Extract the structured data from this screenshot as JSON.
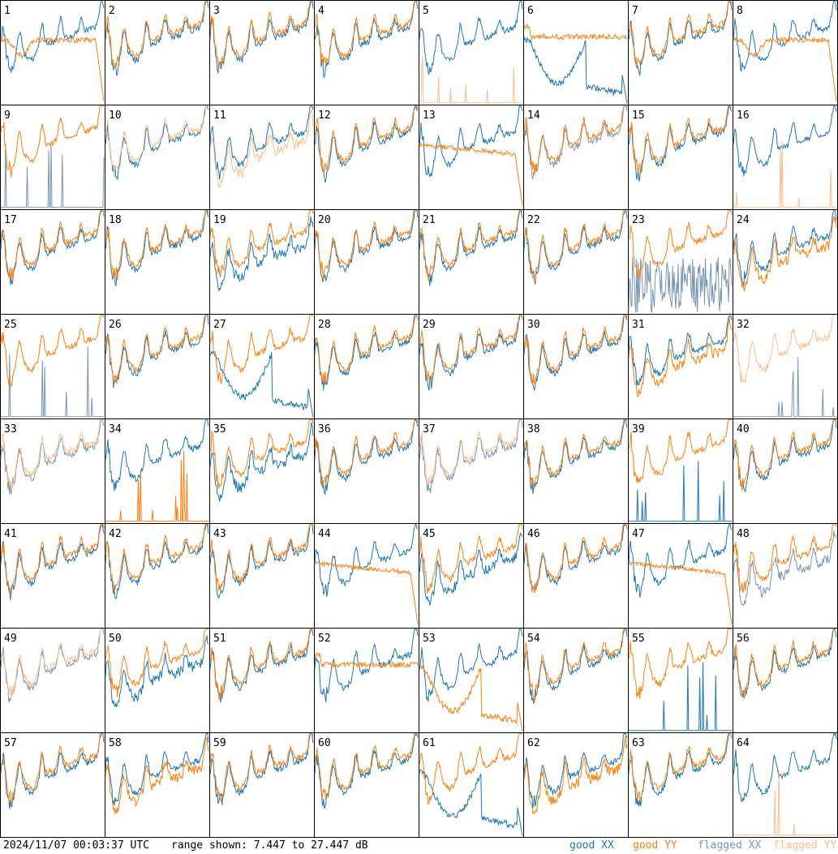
{
  "footer": {
    "timestamp": "2024/11/07 00:03:37 UTC",
    "range_text": "range shown: 7.447 to 27.447 dB",
    "legend": {
      "good_xx": "good XX",
      "good_yy": "good YY",
      "flagged_xx": "flagged XX",
      "flagged_yy": "flagged YY"
    }
  },
  "colors": {
    "good_xx": "#1f77b4",
    "good_yy": "#ff7f0e",
    "flagged_xx": "#7896b4",
    "flagged_yy": "#ffbe8c"
  },
  "chart_data": {
    "type": "line",
    "grid": "8x8 small multiples",
    "ylim": [
      7.447,
      27.447
    ],
    "y_unit": "dB",
    "panels": [
      {
        "label": "1",
        "xx": "good",
        "yy": "good",
        "xx_shape": "normal",
        "yy_shape": "dropoff"
      },
      {
        "label": "2",
        "xx": "good",
        "yy": "good",
        "xx_shape": "normal",
        "yy_shape": "normal"
      },
      {
        "label": "3",
        "xx": "good",
        "yy": "good",
        "xx_shape": "normal",
        "yy_shape": "normal"
      },
      {
        "label": "4",
        "xx": "good",
        "yy": "good",
        "xx_shape": "normal",
        "yy_shape": "normal"
      },
      {
        "label": "5",
        "xx": "good",
        "yy": "flagged",
        "xx_shape": "normal",
        "yy_shape": "spiky_low"
      },
      {
        "label": "6",
        "xx": "good",
        "yy": "good",
        "xx_shape": "dip",
        "yy_shape": "flat"
      },
      {
        "label": "7",
        "xx": "good",
        "yy": "good",
        "xx_shape": "normal",
        "yy_shape": "normal"
      },
      {
        "label": "8",
        "xx": "good",
        "yy": "good",
        "xx_shape": "normal",
        "yy_shape": "dropoff"
      },
      {
        "label": "9",
        "xx": "flagged",
        "yy": "good",
        "xx_shape": "spiky_low",
        "yy_shape": "normal"
      },
      {
        "label": "10",
        "xx": "good",
        "yy": "flagged",
        "xx_shape": "normal",
        "yy_shape": "normal"
      },
      {
        "label": "11",
        "xx": "good",
        "yy": "flagged",
        "xx_shape": "normal",
        "yy_shape": "low"
      },
      {
        "label": "12",
        "xx": "good",
        "yy": "good",
        "xx_shape": "normal",
        "yy_shape": "normal"
      },
      {
        "label": "13",
        "xx": "good",
        "yy": "good",
        "xx_shape": "normal",
        "yy_shape": "flat_drop"
      },
      {
        "label": "14",
        "xx": "flagged",
        "yy": "good",
        "xx_shape": "normal",
        "yy_shape": "normal"
      },
      {
        "label": "15",
        "xx": "good",
        "yy": "good",
        "xx_shape": "normal",
        "yy_shape": "normal"
      },
      {
        "label": "16",
        "xx": "good",
        "yy": "flagged",
        "xx_shape": "normal",
        "yy_shape": "spiky_low"
      },
      {
        "label": "17",
        "xx": "good",
        "yy": "good",
        "xx_shape": "normal",
        "yy_shape": "normal"
      },
      {
        "label": "18",
        "xx": "good",
        "yy": "good",
        "xx_shape": "normal",
        "yy_shape": "normal"
      },
      {
        "label": "19",
        "xx": "good",
        "yy": "good",
        "xx_shape": "low",
        "yy_shape": "normal"
      },
      {
        "label": "20",
        "xx": "good",
        "yy": "good",
        "xx_shape": "normal",
        "yy_shape": "normal"
      },
      {
        "label": "21",
        "xx": "good",
        "yy": "good",
        "xx_shape": "normal",
        "yy_shape": "normal"
      },
      {
        "label": "22",
        "xx": "good",
        "yy": "good",
        "xx_shape": "normal",
        "yy_shape": "normal"
      },
      {
        "label": "23",
        "xx": "flagged",
        "yy": "good",
        "xx_shape": "noisy",
        "yy_shape": "normal"
      },
      {
        "label": "24",
        "xx": "good",
        "yy": "good",
        "xx_shape": "normal",
        "yy_shape": "low"
      },
      {
        "label": "25",
        "xx": "flagged",
        "yy": "good",
        "xx_shape": "spiky_low",
        "yy_shape": "normal"
      },
      {
        "label": "26",
        "xx": "good",
        "yy": "good",
        "xx_shape": "normal",
        "yy_shape": "normal"
      },
      {
        "label": "27",
        "xx": "good",
        "yy": "good",
        "xx_shape": "dip",
        "yy_shape": "normal"
      },
      {
        "label": "28",
        "xx": "good",
        "yy": "good",
        "xx_shape": "normal",
        "yy_shape": "normal"
      },
      {
        "label": "29",
        "xx": "good",
        "yy": "good",
        "xx_shape": "normal",
        "yy_shape": "normal"
      },
      {
        "label": "30",
        "xx": "good",
        "yy": "good",
        "xx_shape": "normal",
        "yy_shape": "normal"
      },
      {
        "label": "31",
        "xx": "good",
        "yy": "good",
        "xx_shape": "normal",
        "yy_shape": "low"
      },
      {
        "label": "32",
        "xx": "flagged",
        "yy": "flagged",
        "xx_shape": "spiky_low",
        "yy_shape": "normal"
      },
      {
        "label": "33",
        "xx": "flagged",
        "yy": "flagged",
        "xx_shape": "normal",
        "yy_shape": "normal"
      },
      {
        "label": "34",
        "xx": "good",
        "yy": "good",
        "xx_shape": "normal",
        "yy_shape": "spiky_low"
      },
      {
        "label": "35",
        "xx": "good",
        "yy": "good",
        "xx_shape": "low",
        "yy_shape": "normal"
      },
      {
        "label": "36",
        "xx": "good",
        "yy": "good",
        "xx_shape": "normal",
        "yy_shape": "normal"
      },
      {
        "label": "37",
        "xx": "flagged",
        "yy": "flagged",
        "xx_shape": "normal",
        "yy_shape": "normal"
      },
      {
        "label": "38",
        "xx": "good",
        "yy": "good",
        "xx_shape": "normal",
        "yy_shape": "normal"
      },
      {
        "label": "39",
        "xx": "good",
        "yy": "good",
        "xx_shape": "spiky_low",
        "yy_shape": "normal"
      },
      {
        "label": "40",
        "xx": "good",
        "yy": "good",
        "xx_shape": "normal",
        "yy_shape": "normal"
      },
      {
        "label": "41",
        "xx": "good",
        "yy": "good",
        "xx_shape": "normal",
        "yy_shape": "normal"
      },
      {
        "label": "42",
        "xx": "good",
        "yy": "good",
        "xx_shape": "normal",
        "yy_shape": "normal"
      },
      {
        "label": "43",
        "xx": "good",
        "yy": "good",
        "xx_shape": "normal",
        "yy_shape": "normal"
      },
      {
        "label": "44",
        "xx": "good",
        "yy": "good",
        "xx_shape": "normal",
        "yy_shape": "flat_drop"
      },
      {
        "label": "45",
        "xx": "good",
        "yy": "good",
        "xx_shape": "low",
        "yy_shape": "normal"
      },
      {
        "label": "46",
        "xx": "good",
        "yy": "good",
        "xx_shape": "normal",
        "yy_shape": "normal"
      },
      {
        "label": "47",
        "xx": "good",
        "yy": "good",
        "xx_shape": "normal",
        "yy_shape": "flat_drop"
      },
      {
        "label": "48",
        "xx": "flagged",
        "yy": "good",
        "xx_shape": "low",
        "yy_shape": "normal"
      },
      {
        "label": "49",
        "xx": "flagged",
        "yy": "flagged",
        "xx_shape": "normal",
        "yy_shape": "normal"
      },
      {
        "label": "50",
        "xx": "good",
        "yy": "good",
        "xx_shape": "low",
        "yy_shape": "normal"
      },
      {
        "label": "51",
        "xx": "good",
        "yy": "good",
        "xx_shape": "normal",
        "yy_shape": "normal"
      },
      {
        "label": "52",
        "xx": "good",
        "yy": "good",
        "xx_shape": "normal",
        "yy_shape": "flat"
      },
      {
        "label": "53",
        "xx": "good",
        "yy": "good",
        "xx_shape": "normal",
        "yy_shape": "dip"
      },
      {
        "label": "54",
        "xx": "good",
        "yy": "good",
        "xx_shape": "normal",
        "yy_shape": "normal"
      },
      {
        "label": "55",
        "xx": "good",
        "yy": "good",
        "xx_shape": "spiky_low",
        "yy_shape": "normal"
      },
      {
        "label": "56",
        "xx": "good",
        "yy": "good",
        "xx_shape": "normal",
        "yy_shape": "normal"
      },
      {
        "label": "57",
        "xx": "good",
        "yy": "good",
        "xx_shape": "normal",
        "yy_shape": "normal"
      },
      {
        "label": "58",
        "xx": "good",
        "yy": "good",
        "xx_shape": "normal",
        "yy_shape": "low"
      },
      {
        "label": "59",
        "xx": "good",
        "yy": "good",
        "xx_shape": "normal",
        "yy_shape": "normal"
      },
      {
        "label": "60",
        "xx": "good",
        "yy": "good",
        "xx_shape": "normal",
        "yy_shape": "normal"
      },
      {
        "label": "61",
        "xx": "good",
        "yy": "good",
        "xx_shape": "dip",
        "yy_shape": "normal"
      },
      {
        "label": "62",
        "xx": "good",
        "yy": "good",
        "xx_shape": "normal",
        "yy_shape": "low"
      },
      {
        "label": "63",
        "xx": "good",
        "yy": "good",
        "xx_shape": "normal",
        "yy_shape": "normal"
      },
      {
        "label": "64",
        "xx": "good",
        "yy": "flagged",
        "xx_shape": "normal",
        "yy_shape": "spiky_low"
      }
    ]
  }
}
